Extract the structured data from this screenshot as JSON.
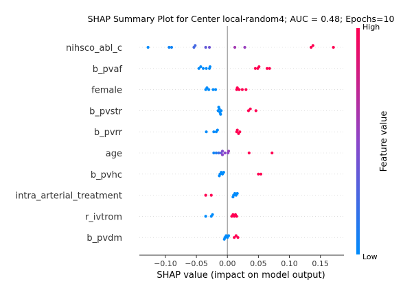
{
  "chart_data": {
    "type": "scatter",
    "title": "SHAP Summary Plot for Center local-random4; AUC = 0.48; Epochs=10",
    "xlabel": "SHAP value (impact on model output)",
    "ylabel": "",
    "xlim": [
      -0.142,
      0.188
    ],
    "xticks": [
      -0.1,
      -0.05,
      0.0,
      0.05,
      0.1,
      0.15
    ],
    "xtick_labels": [
      "−0.10",
      "−0.05",
      "0.00",
      "0.05",
      "0.10",
      "0.15"
    ],
    "colorbar": {
      "label": "Feature value",
      "high_label": "High",
      "low_label": "Low",
      "low_color": "#008bfb",
      "mid_color": "#8c46c9",
      "high_color": "#ff0052"
    },
    "features": [
      {
        "name": "nihsco_abl_c",
        "points": [
          {
            "x": -0.128,
            "v": 0.0
          },
          {
            "x": -0.094,
            "v": 0.05
          },
          {
            "x": -0.09,
            "v": 0.05
          },
          {
            "x": -0.054,
            "v": 0.25
          },
          {
            "x": -0.052,
            "v": 0.25
          },
          {
            "x": -0.035,
            "v": 0.35
          },
          {
            "x": -0.029,
            "v": 0.4
          },
          {
            "x": 0.012,
            "v": 0.6
          },
          {
            "x": 0.028,
            "v": 0.55
          },
          {
            "x": 0.135,
            "v": 1.0
          },
          {
            "x": 0.138,
            "v": 1.0
          },
          {
            "x": 0.171,
            "v": 1.0
          }
        ]
      },
      {
        "name": "b_pvaf",
        "points": [
          {
            "x": -0.046,
            "v": 0.0
          },
          {
            "x": -0.043,
            "v": 0.0
          },
          {
            "x": -0.039,
            "v": 0.0
          },
          {
            "x": -0.034,
            "v": 0.0
          },
          {
            "x": -0.029,
            "v": 0.0
          },
          {
            "x": -0.028,
            "v": 0.0
          },
          {
            "x": 0.045,
            "v": 1.0
          },
          {
            "x": 0.049,
            "v": 1.0
          },
          {
            "x": 0.051,
            "v": 1.0
          },
          {
            "x": 0.064,
            "v": 1.0
          },
          {
            "x": 0.068,
            "v": 1.0
          }
        ]
      },
      {
        "name": "female",
        "points": [
          {
            "x": -0.035,
            "v": 0.0
          },
          {
            "x": -0.033,
            "v": 0.0
          },
          {
            "x": -0.03,
            "v": 0.0
          },
          {
            "x": -0.023,
            "v": 0.0
          },
          {
            "x": -0.019,
            "v": 0.0
          },
          {
            "x": 0.015,
            "v": 1.0
          },
          {
            "x": 0.016,
            "v": 1.0
          },
          {
            "x": 0.019,
            "v": 1.0
          },
          {
            "x": 0.024,
            "v": 1.0
          },
          {
            "x": 0.03,
            "v": 1.0
          }
        ]
      },
      {
        "name": "b_pvstr",
        "points": [
          {
            "x": -0.015,
            "v": 0.0
          },
          {
            "x": -0.013,
            "v": 0.0
          },
          {
            "x": -0.01,
            "v": 0.0
          },
          {
            "x": -0.012,
            "v": 0.0
          },
          {
            "x": -0.014,
            "v": 0.0
          },
          {
            "x": -0.011,
            "v": 0.0
          },
          {
            "x": 0.034,
            "v": 1.0
          },
          {
            "x": 0.037,
            "v": 1.0
          },
          {
            "x": 0.046,
            "v": 1.0
          }
        ]
      },
      {
        "name": "b_pvrr",
        "points": [
          {
            "x": -0.034,
            "v": 0.0
          },
          {
            "x": -0.022,
            "v": 0.0
          },
          {
            "x": -0.018,
            "v": 0.0
          },
          {
            "x": -0.016,
            "v": 0.0
          },
          {
            "x": 0.015,
            "v": 1.0
          },
          {
            "x": 0.016,
            "v": 1.0
          },
          {
            "x": 0.018,
            "v": 1.0
          },
          {
            "x": 0.02,
            "v": 1.0
          }
        ]
      },
      {
        "name": "age",
        "points": [
          {
            "x": -0.022,
            "v": 0.05
          },
          {
            "x": -0.018,
            "v": 0.1
          },
          {
            "x": -0.014,
            "v": 0.2
          },
          {
            "x": -0.01,
            "v": 0.35
          },
          {
            "x": -0.008,
            "v": 0.45
          },
          {
            "x": -0.004,
            "v": 0.5
          },
          {
            "x": 0.001,
            "v": 0.5
          },
          {
            "x": -0.008,
            "v": 0.5
          },
          {
            "x": 0.002,
            "v": 0.55
          },
          {
            "x": 0.035,
            "v": 1.0
          },
          {
            "x": 0.072,
            "v": 1.0
          }
        ]
      },
      {
        "name": "b_pvhc",
        "points": [
          {
            "x": -0.012,
            "v": 0.0
          },
          {
            "x": -0.008,
            "v": 0.0
          },
          {
            "x": -0.01,
            "v": 0.0
          },
          {
            "x": -0.013,
            "v": 0.0
          },
          {
            "x": -0.006,
            "v": 0.0
          },
          {
            "x": 0.05,
            "v": 1.0
          },
          {
            "x": 0.054,
            "v": 1.0
          }
        ]
      },
      {
        "name": "intra_arterial_treatment",
        "points": [
          {
            "x": -0.035,
            "v": 1.0
          },
          {
            "x": -0.026,
            "v": 1.0
          },
          {
            "x": 0.01,
            "v": 0.0
          },
          {
            "x": 0.012,
            "v": 0.0
          },
          {
            "x": 0.014,
            "v": 0.0
          },
          {
            "x": 0.009,
            "v": 0.0
          },
          {
            "x": 0.016,
            "v": 0.0
          }
        ]
      },
      {
        "name": "r_ivtrom",
        "points": [
          {
            "x": -0.035,
            "v": 0.0
          },
          {
            "x": -0.026,
            "v": 0.0
          },
          {
            "x": -0.024,
            "v": 0.0
          },
          {
            "x": 0.007,
            "v": 1.0
          },
          {
            "x": 0.009,
            "v": 1.0
          },
          {
            "x": 0.011,
            "v": 1.0
          },
          {
            "x": 0.013,
            "v": 1.0
          },
          {
            "x": 0.015,
            "v": 1.0
          }
        ]
      },
      {
        "name": "b_pvdm",
        "points": [
          {
            "x": -0.004,
            "v": 0.0
          },
          {
            "x": -0.002,
            "v": 0.0
          },
          {
            "x": 0.0,
            "v": 0.0
          },
          {
            "x": -0.005,
            "v": 0.0
          },
          {
            "x": 0.002,
            "v": 0.0
          },
          {
            "x": 0.011,
            "v": 1.0
          },
          {
            "x": 0.014,
            "v": 1.0
          },
          {
            "x": 0.017,
            "v": 1.0
          }
        ]
      }
    ]
  }
}
